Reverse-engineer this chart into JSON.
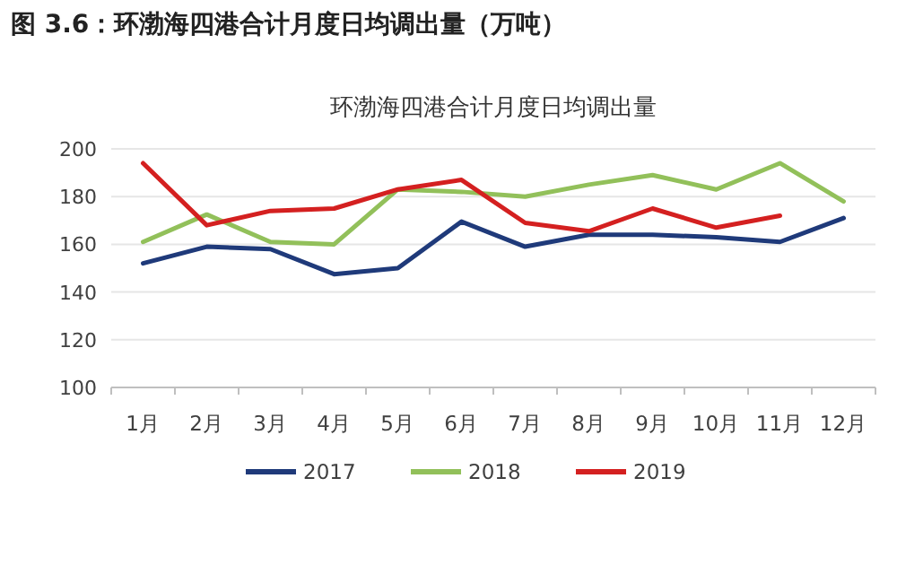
{
  "chart_data": {
    "type": "line",
    "title": "图 3.6：环渤海四港合计月度日均调出量（万吨）",
    "subtitle": "环渤海四港合计月度日均调出量",
    "categories": [
      "1月",
      "2月",
      "3月",
      "4月",
      "5月",
      "6月",
      "7月",
      "8月",
      "9月",
      "10月",
      "11月",
      "12月"
    ],
    "series": [
      {
        "name": "2017",
        "color": "#1f3a7a",
        "values": [
          152,
          159,
          158,
          147.5,
          150,
          169.5,
          159,
          164,
          164,
          163,
          161,
          171
        ]
      },
      {
        "name": "2018",
        "color": "#92c05a",
        "values": [
          161,
          172.5,
          161,
          160,
          183,
          182,
          180,
          185,
          189,
          183,
          194,
          178
        ]
      },
      {
        "name": "2019",
        "color": "#d42020",
        "values": [
          194,
          168,
          174,
          175,
          183,
          187,
          169,
          165.5,
          175,
          167,
          172,
          null
        ]
      }
    ],
    "ylim": [
      100,
      200
    ],
    "yticks": [
      100,
      120,
      140,
      160,
      180,
      200
    ],
    "grid": "y",
    "legend": "bottom",
    "marker": "none",
    "line_style": "solid"
  }
}
